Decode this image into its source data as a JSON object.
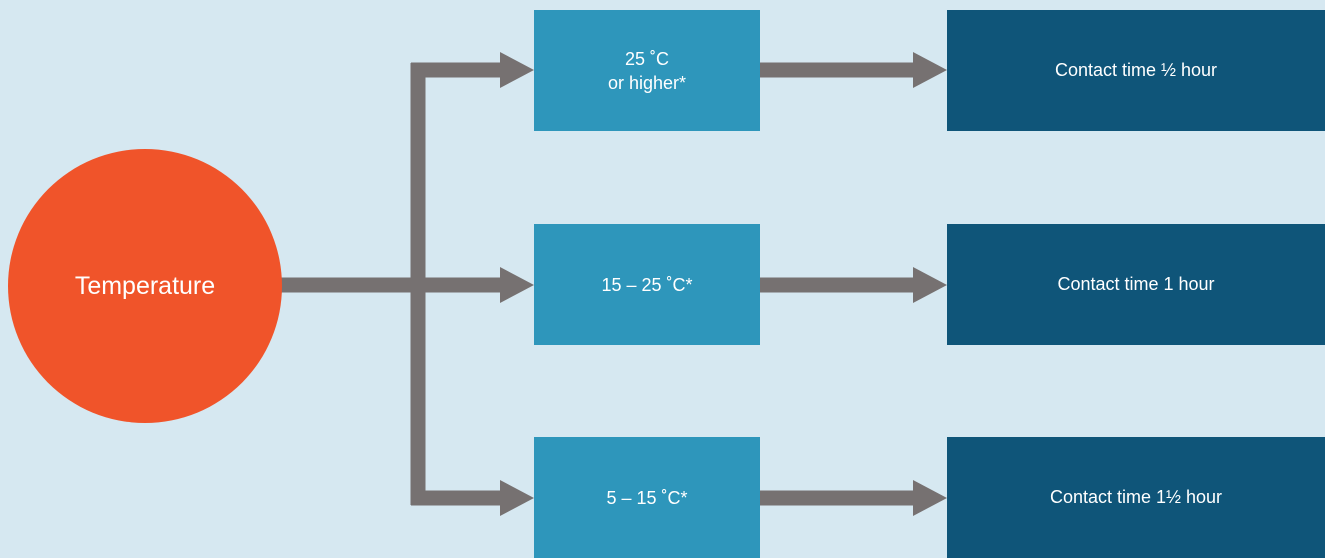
{
  "diagram": {
    "root": {
      "label": "Temperature"
    },
    "branches": [
      {
        "condition_line1": "25 ˚C",
        "condition_line2": "or higher*",
        "result": "Contact time ½ hour"
      },
      {
        "condition_line1": "15 – 25 ˚C*",
        "condition_line2": "",
        "result": "Contact time 1 hour"
      },
      {
        "condition_line1": "5 – 15 ˚C*",
        "condition_line2": "",
        "result": "Contact time 1½ hour"
      }
    ]
  },
  "colors": {
    "background": "#d6e8f1",
    "root_circle": "#f0542a",
    "condition_box": "#2e96bb",
    "result_box": "#0f5579",
    "arrow": "#767171"
  }
}
